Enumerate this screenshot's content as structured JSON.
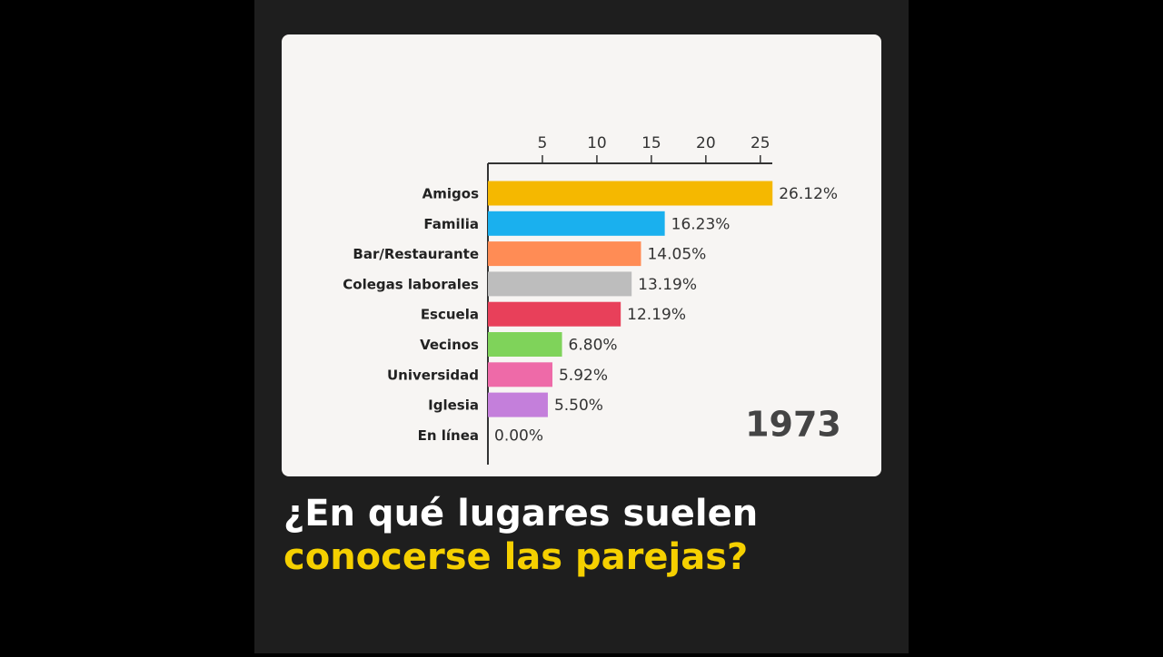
{
  "chart_data": {
    "type": "bar",
    "orientation": "horizontal",
    "categories": [
      "Amigos",
      "Familia",
      "Bar/Restaurante",
      "Colegas laborales",
      "Escuela",
      "Vecinos",
      "Universidad",
      "Iglesia",
      "En línea"
    ],
    "values": [
      26.12,
      16.23,
      14.05,
      13.19,
      12.19,
      6.8,
      5.92,
      5.5,
      0.0
    ],
    "value_labels": [
      "26.12%",
      "16.23%",
      "14.05%",
      "13.19%",
      "12.19%",
      "6.80%",
      "5.92%",
      "5.50%",
      "0.00%"
    ],
    "colors": [
      "#f5b800",
      "#1ab0ee",
      "#ff8c55",
      "#bdbdbd",
      "#e8405a",
      "#7fd35a",
      "#ee6aa8",
      "#c47fdb",
      "#888888"
    ],
    "xlim": [
      0,
      26.1
    ],
    "xticks": [
      5,
      10,
      15,
      20,
      25
    ],
    "annotation": "1973",
    "title": [
      "¿En qué lugares suelen",
      "conocerse las parejas?"
    ]
  }
}
